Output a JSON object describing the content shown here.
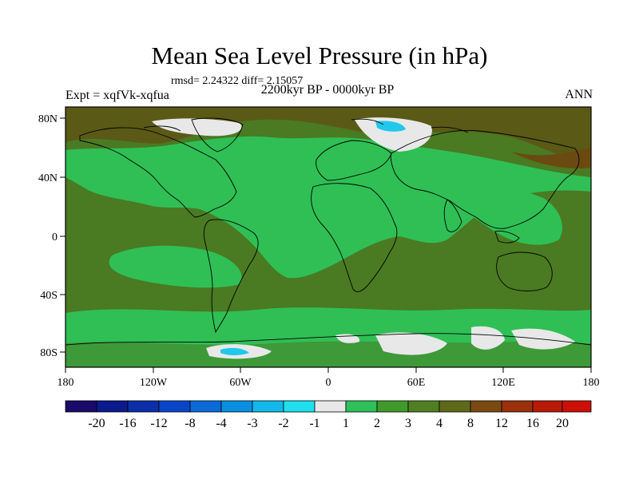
{
  "title": "Mean Sea Level Pressure (in hPa)",
  "stats_line": "rmsd= 2.24322 diff= 2.15057",
  "experiment": "Expt = xqfVk-xqfua",
  "period": "2200kyr BP - 0000kyr BP",
  "season": "ANN",
  "lat_labels": [
    "80N",
    "40N",
    "0",
    "40S",
    "80S"
  ],
  "lon_labels": [
    "180",
    "120W",
    "60W",
    "0",
    "60E",
    "120E",
    "180"
  ],
  "colorbar": {
    "labels": [
      "-20",
      "-16",
      "-12",
      "-8",
      "-4",
      "-3",
      "-2",
      "-1",
      "1",
      "2",
      "3",
      "4",
      "8",
      "12",
      "16",
      "20"
    ],
    "colors": [
      "#1a0a6a",
      "#0b1a8c",
      "#0a2fa8",
      "#0a45c8",
      "#0a6ad8",
      "#0a8fe0",
      "#12b8ea",
      "#20e0f0",
      "#e8e8e8",
      "#2ec05a",
      "#3f9a2a",
      "#4f7f22",
      "#5f6a18",
      "#7a4a12",
      "#9a300c",
      "#b81a08",
      "#cc1006"
    ]
  }
}
